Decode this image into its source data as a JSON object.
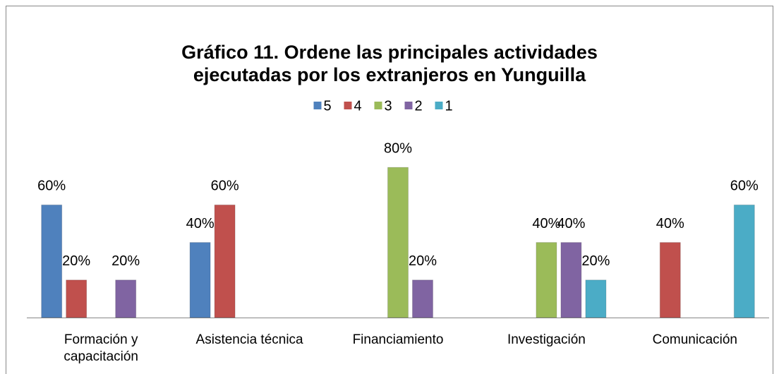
{
  "chart_data": {
    "type": "bar",
    "title": "Gráfico 11. Ordene las principales actividades ejecutadas por los extranjeros en Yunguilla",
    "categories": [
      "Formación y capacitación",
      "Asistencia técnica",
      "Financiamiento",
      "Investigación",
      "Comunicación"
    ],
    "series": [
      {
        "name": "5",
        "color": "#4f81bd",
        "values": [
          60,
          40,
          null,
          null,
          null
        ],
        "value_labels": [
          "60%",
          "40%",
          null,
          null,
          null
        ]
      },
      {
        "name": "4",
        "color": "#c0504d",
        "values": [
          20,
          60,
          null,
          null,
          40
        ],
        "value_labels": [
          "20%",
          "60%",
          null,
          null,
          "40%"
        ]
      },
      {
        "name": "3",
        "color": "#9bbb59",
        "values": [
          null,
          null,
          80,
          40,
          null
        ],
        "value_labels": [
          null,
          null,
          "80%",
          "40%",
          null
        ]
      },
      {
        "name": "2",
        "color": "#8064a2",
        "values": [
          20,
          null,
          20,
          40,
          null
        ],
        "value_labels": [
          "20%",
          null,
          "20%",
          "40%",
          null
        ]
      },
      {
        "name": "1",
        "color": "#4bacc6",
        "values": [
          null,
          null,
          null,
          20,
          60
        ],
        "value_labels": [
          null,
          null,
          null,
          "20%",
          "60%"
        ]
      }
    ],
    "ylim": [
      0,
      100
    ],
    "legend": "top"
  }
}
